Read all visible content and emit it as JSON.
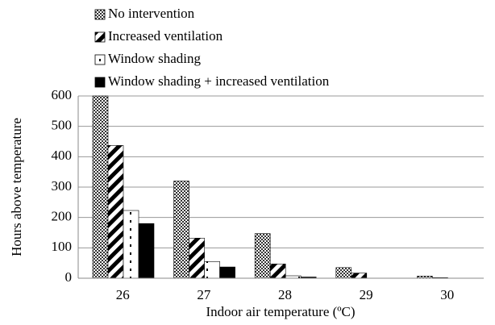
{
  "chart_data": {
    "type": "bar",
    "xlabel": "Indoor air temperature (ºC)",
    "ylabel": "Hours above temperature",
    "categories": [
      "26",
      "27",
      "28",
      "29",
      "30"
    ],
    "series": [
      {
        "name": "No intervention",
        "values": [
          600,
          320,
          147,
          35,
          7
        ]
      },
      {
        "name": "Increased ventilation",
        "values": [
          437,
          132,
          47,
          17,
          2
        ]
      },
      {
        "name": "Window shading",
        "values": [
          223,
          55,
          8,
          0,
          0
        ]
      },
      {
        "name": "Window shading + increased ventilation",
        "values": [
          180,
          37,
          4,
          0,
          0
        ]
      }
    ],
    "ylim": [
      0,
      600
    ],
    "yticks": [
      0,
      100,
      200,
      300,
      400,
      500,
      600
    ],
    "grid": true
  }
}
